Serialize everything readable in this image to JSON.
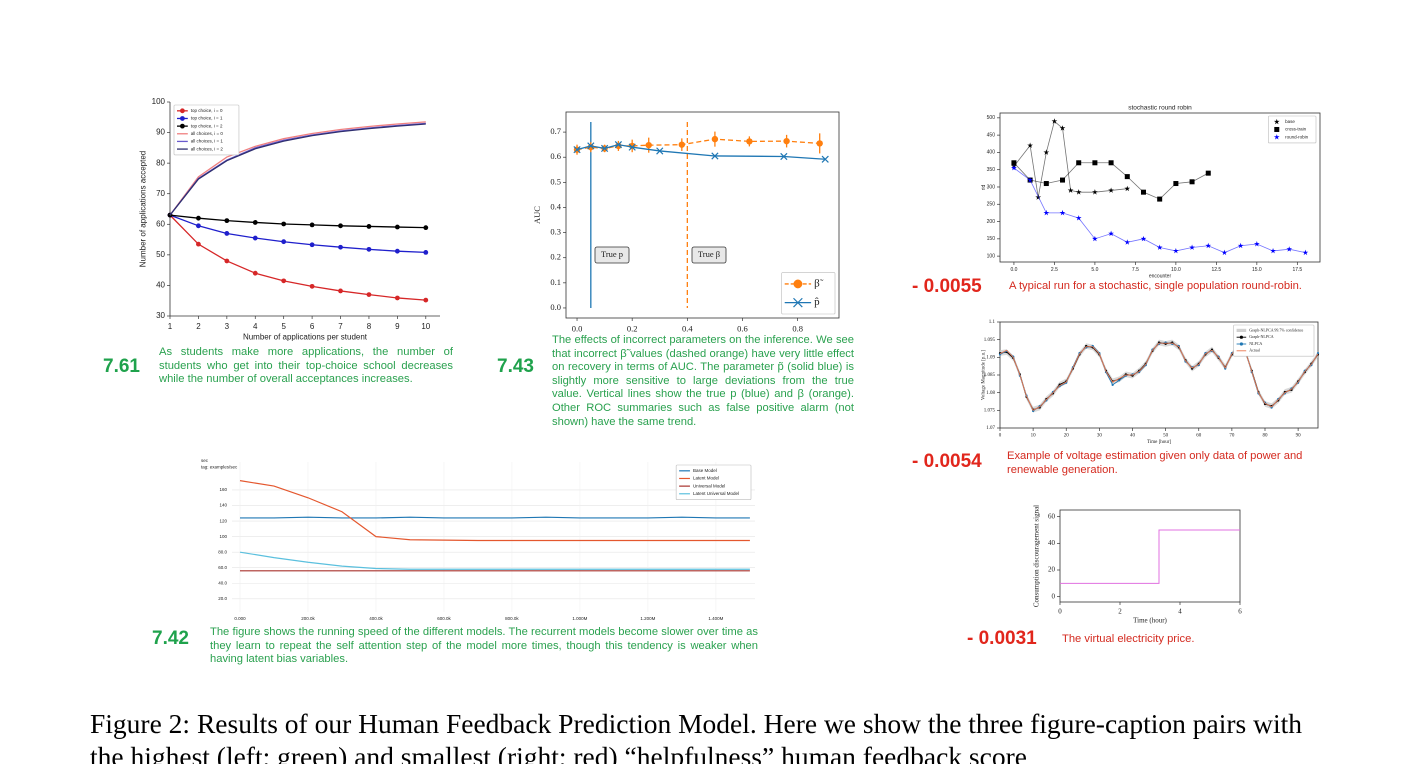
{
  "chart_data": [
    {
      "type": "line",
      "xlabel": "Number of applications per student",
      "ylabel": "Number of applications accepted",
      "x": [
        1,
        2,
        3,
        4,
        5,
        6,
        7,
        8,
        9,
        10
      ],
      "xlim": [
        1,
        10.5
      ],
      "ylim": [
        30,
        100
      ],
      "xticks": [
        1,
        2,
        3,
        4,
        5,
        6,
        7,
        8,
        9,
        10
      ],
      "yticks": [
        30,
        40,
        50,
        60,
        70,
        80,
        90,
        100
      ],
      "grid": false,
      "legend": "upper left",
      "series": [
        {
          "name": "top choice, i = 0",
          "color": "#d62728",
          "marker": "circle",
          "values": [
            63,
            53.5,
            48,
            44,
            41.5,
            39.7,
            38.2,
            37,
            35.9,
            35.2
          ]
        },
        {
          "name": "top choice, i = 1",
          "color": "#1f1fcc",
          "marker": "circle",
          "values": [
            63,
            59.5,
            57,
            55.5,
            54.3,
            53.3,
            52.5,
            51.8,
            51.2,
            50.8
          ]
        },
        {
          "name": "top choice, i = 2",
          "color": "#000000",
          "marker": "circle",
          "values": [
            63,
            62,
            61.2,
            60.6,
            60.1,
            59.8,
            59.5,
            59.3,
            59.1,
            58.9
          ]
        },
        {
          "name": "all choices, i = 0",
          "color": "#f08080",
          "values": [
            63,
            75.5,
            82,
            85.5,
            88,
            89.7,
            91,
            92,
            92.8,
            93.5
          ]
        },
        {
          "name": "all choices, i = 1",
          "color": "#6a5acd",
          "values": [
            63,
            75,
            81,
            85,
            87.5,
            89.2,
            90.5,
            91.5,
            92.3,
            93
          ]
        },
        {
          "name": "all choices, i = 2",
          "color": "#2f2f6f",
          "values": [
            63,
            74.8,
            80.8,
            84.7,
            87.2,
            89,
            90.3,
            91.3,
            92.1,
            92.8
          ]
        }
      ]
    },
    {
      "type": "line",
      "ylabel": "AUC",
      "xlim": [
        -0.04,
        0.95
      ],
      "ylim": [
        -0.04,
        0.78
      ],
      "xticks": [
        {
          "value": 0,
          "label": "0.0"
        },
        0.2,
        0.4,
        0.6,
        0.8
      ],
      "yticks": [
        {
          "value": 0,
          "label": "0.0"
        },
        0.1,
        0.2,
        0.3,
        0.4,
        0.5,
        0.6,
        0.7
      ],
      "grid": false,
      "legend": "lower right",
      "vlines": [
        {
          "x": 0.05,
          "color": "#1f77b4",
          "dashed": false
        },
        {
          "x": 0.4,
          "color": "#ff7f0e",
          "dashed": true
        }
      ],
      "annotations": [
        "True p",
        "True β"
      ],
      "series": [
        {
          "name": "β̃",
          "color": "#ff7f0e",
          "marker": "circle",
          "dashed": true,
          "x": [
            0,
            0.05,
            0.1,
            0.15,
            0.2,
            0.26,
            0.38,
            0.5,
            0.625,
            0.76,
            0.88
          ],
          "values": [
            0.63,
            0.64,
            0.635,
            0.645,
            0.645,
            0.648,
            0.65,
            0.672,
            0.663,
            0.664,
            0.655
          ],
          "errors": [
            0.02,
            0.02,
            0.015,
            0.02,
            0.025,
            0.03,
            0.025,
            0.03,
            0.02,
            0.025,
            0.04
          ]
        },
        {
          "name": "p̂",
          "color": "#1f77b4",
          "marker": "x",
          "x": [
            0,
            0.05,
            0.1,
            0.15,
            0.2,
            0.3,
            0.5,
            0.75,
            0.9
          ],
          "values": [
            0.63,
            0.645,
            0.635,
            0.65,
            0.64,
            0.625,
            0.605,
            0.603,
            0.592
          ]
        }
      ]
    },
    {
      "type": "line",
      "ylabel": "sec",
      "subtitle": "tag: examples/sec",
      "x": [
        0,
        100000,
        200000,
        300000,
        400000,
        500000,
        600000,
        700000,
        800000,
        900000,
        1000000,
        1100000,
        1200000,
        1300000,
        1400000,
        1500000
      ],
      "xlim": [
        -23500,
        1515000
      ],
      "ylim": [
        3,
        196
      ],
      "xticks": [
        {
          "value": 0,
          "label": "0.000"
        },
        {
          "value": 200000,
          "label": "200.0k"
        },
        {
          "value": 400000,
          "label": "400.0k"
        },
        {
          "value": 600000,
          "label": "600.0k"
        },
        {
          "value": 800000,
          "label": "800.0k"
        },
        {
          "value": 1000000,
          "label": "1.000M"
        },
        {
          "value": 1200000,
          "label": "1.200M"
        },
        {
          "value": 1400000,
          "label": "1.400M"
        }
      ],
      "yticks": [
        {
          "value": 20,
          "label": "20.0"
        },
        {
          "value": 40,
          "label": "40.0"
        },
        {
          "value": 60,
          "label": "60.0"
        },
        {
          "value": 80,
          "label": "80.0"
        },
        100,
        120,
        140,
        160
      ],
      "grid": true,
      "legend": "upper right",
      "series": [
        {
          "name": "Base Model",
          "color": "#1f77b4",
          "values": [
            124,
            124,
            125,
            124,
            124,
            125,
            124,
            124,
            124,
            125,
            124,
            124,
            124,
            125,
            124,
            124
          ]
        },
        {
          "name": "Latent Model",
          "color": "#e4572e",
          "values": [
            172,
            165,
            150,
            132,
            100,
            96,
            95.5,
            95,
            95,
            95,
            95,
            95,
            95,
            95,
            95,
            95
          ]
        },
        {
          "name": "Universal Model",
          "color": "#a8322d",
          "values": [
            56,
            56,
            56,
            56,
            56,
            56,
            56,
            56,
            56,
            56,
            56,
            56,
            56,
            56,
            56,
            56
          ]
        },
        {
          "name": "Latent Universal Model",
          "color": "#5bc0de",
          "values": [
            80,
            73,
            67,
            62,
            59,
            58,
            58,
            58,
            58,
            58,
            58,
            58,
            58,
            58,
            58,
            58
          ]
        }
      ]
    },
    {
      "type": "line",
      "title": "stochastic round robin",
      "xlabel": "encounter",
      "ylabel": "rid",
      "xlim": [
        -0.86,
        18.9
      ],
      "ylim": [
        83,
        514
      ],
      "xticks": [
        {
          "value": 0,
          "label": "0.0"
        },
        2.5,
        {
          "value": 5,
          "label": "5.0"
        },
        7.5,
        {
          "value": 10,
          "label": "10.0"
        },
        12.5,
        {
          "value": 15,
          "label": "15.0"
        },
        17.5
      ],
      "yticks": [
        100,
        150,
        200,
        250,
        300,
        350,
        400,
        450,
        500
      ],
      "grid": false,
      "legend": "upper right",
      "series": [
        {
          "name": "base",
          "color": "#000000",
          "marker": "star",
          "x": [
            0,
            1,
            1.5,
            2,
            2.5,
            3,
            3.5,
            4,
            5,
            6,
            7
          ],
          "values": [
            360,
            420,
            270,
            400,
            490,
            470,
            290,
            285,
            285,
            290,
            295
          ]
        },
        {
          "name": "cross-train",
          "color": "#000000",
          "marker": "square",
          "x": [
            0,
            1,
            2,
            3,
            4,
            5,
            6,
            7,
            8,
            9,
            10,
            11,
            12
          ],
          "values": [
            370,
            320,
            310,
            320,
            370,
            370,
            370,
            330,
            285,
            265,
            310,
            315,
            340
          ]
        },
        {
          "name": "round-robin",
          "color": "#0000ff",
          "marker": "star",
          "x": [
            0,
            1,
            2,
            3,
            4,
            5,
            6,
            7,
            8,
            9,
            10,
            11,
            12,
            13,
            14,
            15,
            16,
            17,
            18
          ],
          "values": [
            355,
            320,
            225,
            225,
            210,
            150,
            165,
            140,
            150,
            125,
            115,
            125,
            130,
            110,
            130,
            135,
            115,
            120,
            110
          ]
        }
      ]
    },
    {
      "type": "line",
      "xlabel": "Time [hour]",
      "ylabel": "Voltage Magnitude [p.u.]",
      "x": [
        0,
        2,
        4,
        6,
        8,
        10,
        12,
        14,
        16,
        18,
        20,
        22,
        24,
        26,
        28,
        30,
        32,
        34,
        36,
        38,
        40,
        42,
        44,
        46,
        48,
        50,
        52,
        54,
        56,
        58,
        60,
        62,
        64,
        66,
        68,
        70,
        72,
        74,
        76,
        78,
        80,
        82,
        84,
        86,
        88,
        90,
        92,
        94,
        96
      ],
      "xlim": [
        0,
        96
      ],
      "ylim": [
        1.07,
        1.1
      ],
      "xticks": [
        0,
        10,
        20,
        30,
        40,
        50,
        60,
        70,
        80,
        90
      ],
      "yticks": [
        1.07,
        1.075,
        1.08,
        1.085,
        1.09,
        1.095,
        1.1
      ],
      "grid": false,
      "legend": "upper right",
      "series": [
        {
          "name": "Graph-NLPCA",
          "color": "#000000",
          "marker": "dot",
          "band": 0.0008,
          "band_name": "Graph-NLPCA 99.7% confidence",
          "band_color": "#d0d0d0",
          "values": [
            1.0912,
            1.0915,
            1.0898,
            1.0852,
            1.0788,
            1.0752,
            1.0758,
            1.0782,
            1.0798,
            1.0823,
            1.0832,
            1.0868,
            1.0908,
            1.0932,
            1.0928,
            1.0908,
            1.0862,
            1.0832,
            1.0838,
            1.0852,
            1.0848,
            1.0862,
            1.0882,
            1.0918,
            1.0942,
            1.0938,
            1.0942,
            1.0928,
            1.0892,
            1.0868,
            1.0882,
            1.0908,
            1.0922,
            1.0898,
            1.0872,
            1.0908,
            1.0932,
            1.0918,
            1.0862,
            1.0802,
            1.0768,
            1.0762,
            1.0778,
            1.0802,
            1.0808,
            1.0832,
            1.0858,
            1.0882,
            1.0908
          ]
        },
        {
          "name": "NLPCA",
          "color": "#1f77b4",
          "marker": "dot",
          "values": [
            1.0908,
            1.0918,
            1.0902,
            1.0848,
            1.0792,
            1.0748,
            1.0762,
            1.0778,
            1.0802,
            1.0818,
            1.0828,
            1.0872,
            1.0912,
            1.0928,
            1.0932,
            1.0912,
            1.0858,
            1.0822,
            1.0835,
            1.0848,
            1.0852,
            1.0858,
            1.0878,
            1.0922,
            1.0938,
            1.0942,
            1.0938,
            1.0932,
            1.0888,
            1.0872,
            1.0878,
            1.0912,
            1.0918,
            1.0902,
            1.0868,
            1.0912,
            1.0928,
            1.0922,
            1.0858,
            1.0798,
            1.0772,
            1.0758,
            1.0782,
            1.0798,
            1.0812,
            1.0828,
            1.0862,
            1.0878,
            1.0912
          ]
        },
        {
          "name": "Actual",
          "color": "#e8774f",
          "values": [
            1.091,
            1.092,
            1.09,
            1.085,
            1.079,
            1.075,
            1.076,
            1.078,
            1.08,
            1.082,
            1.083,
            1.087,
            1.091,
            1.093,
            1.093,
            1.091,
            1.086,
            1.083,
            1.084,
            1.085,
            1.085,
            1.086,
            1.088,
            1.092,
            1.094,
            1.094,
            1.094,
            1.093,
            1.089,
            1.087,
            1.088,
            1.091,
            1.092,
            1.09,
            1.087,
            1.091,
            1.093,
            1.092,
            1.086,
            1.08,
            1.077,
            1.076,
            1.078,
            1.08,
            1.081,
            1.083,
            1.086,
            1.088,
            1.091
          ]
        }
      ]
    },
    {
      "type": "line",
      "xlabel": "Time (hour)",
      "ylabel": "Consumption discouragement signal",
      "xlim": [
        0,
        6
      ],
      "ylim": [
        -4,
        65
      ],
      "xticks": [
        0,
        2,
        4,
        6
      ],
      "yticks": [
        0,
        20,
        40,
        60
      ],
      "grid": false,
      "series": [
        {
          "color": "#e070e0",
          "x": [
            0,
            3.3,
            3.3,
            6
          ],
          "values": [
            10,
            10,
            50,
            50
          ]
        }
      ]
    }
  ],
  "scores": [
    "7.61",
    "7.43",
    "7.42",
    "- 0.0055",
    "- 0.0054",
    "- 0.0031"
  ],
  "captions": [
    "As students make more applications, the number of students who get into their top-choice school decreases while the number of overall acceptances increases.",
    "The effects of incorrect parameters on the inference. We see that incorrect β̃ values (dashed orange) have very little effect on recovery in terms of AUC. The parameter p̃ (solid blue) is slightly more sensitive to large deviations from the true value. Vertical lines show the true p (blue) and β (orange). Other ROC summaries such as false positive alarm (not shown) have the same trend.",
    "The figure shows the running speed of the different models. The recurrent models become slower over time as they learn to repeat the self attention step of the model more times, though this tendency is weaker when having latent bias variables.",
    "A typical run for a stochastic, single population round-robin.",
    "Example of voltage estimation given only data of power and renewable generation.",
    "The virtual electricity price."
  ],
  "figure_caption": "Figure 2: Results of our Human Feedback Prediction Model. Here we show the three figure-caption pairs with the highest (left; green) and smallest (right; red) “helpfulness” human feedback score"
}
